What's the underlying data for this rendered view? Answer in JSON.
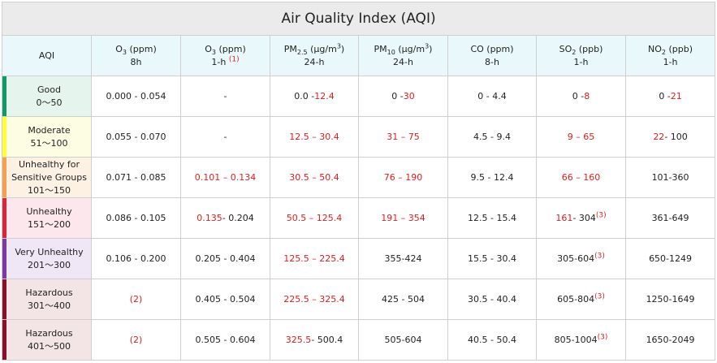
{
  "title": "Air Quality Index (AQI)",
  "header": {
    "aqi": "AQI",
    "o3_8h": {
      "pre": "O",
      "sub": "3",
      "post": " (ppm)",
      "line2": "8h"
    },
    "o3_1h": {
      "pre": "O",
      "sub": "3",
      "post": " (ppm)",
      "line2": "1-h",
      "note": "(1)"
    },
    "pm25": {
      "pre": "PM",
      "sub": "2.5",
      "mid": " (μg/m",
      "sup": "3",
      "post": ")",
      "line2": "24-h"
    },
    "pm10": {
      "pre": "PM",
      "sub": "10",
      "mid": " (μg/m",
      "sup": "3",
      "post": ")",
      "line2": "24-h"
    },
    "co": {
      "line1": "CO (ppm)",
      "line2": "8-h"
    },
    "so2": {
      "pre": "SO",
      "sub": "2",
      "post": " (ppb)",
      "line2": "1-h"
    },
    "no2": {
      "pre": "NO",
      "sub": "2",
      "post": " (ppb)",
      "line2": "1-h"
    }
  },
  "rows": [
    {
      "name": "Good",
      "range": "0～50",
      "bg": "#e6f4ee",
      "bar": "#0f9a6a",
      "o3_8h": "0.000 - 0.054",
      "o3_1h_a": "-",
      "o3_1h_b": "",
      "pm25_a": "0.0 -",
      "pm25_b": "12.4",
      "pm10_a": "0 -",
      "pm10_b": "30",
      "co": "0 - 4.4",
      "so2_a": "0 -",
      "so2_b": "8",
      "so2_note": "",
      "no2_a": "0 -",
      "no2_b": "21"
    },
    {
      "name": "Moderate",
      "range": "51～100",
      "bg": "#fdfde4",
      "bar": "#ffff33",
      "o3_8h": "0.055 - 0.070",
      "o3_1h_a": "-",
      "o3_1h_b": "",
      "pm25_a": "",
      "pm25_b": "12.5 – 30.4",
      "pm10_a": "",
      "pm10_b": "31 – 75",
      "co": "4.5 - 9.4",
      "so2_a": "",
      "so2_b": "9 – 65",
      "so2_note": "",
      "no2_a": "22",
      "no2_b": "- 100"
    },
    {
      "name": "Unhealthy for Sensitive Groups",
      "range": "101～150",
      "bg": "#fdf1e4",
      "bar": "#f5a04a",
      "o3_8h": "0.071 - 0.085",
      "o3_1h_a": "0.101 – 0.134",
      "o3_1h_b": "",
      "pm25_a": "",
      "pm25_b": "30.5 – 50.4",
      "pm10_a": "",
      "pm10_b": "76 – 190",
      "co": "9.5 - 12.4",
      "so2_a": "",
      "so2_b": "66 – 160",
      "so2_note": "",
      "no2_a": "",
      "no2_b": "101-360"
    },
    {
      "name": "Unhealthy",
      "range": "151～200",
      "bg": "#fbe7ec",
      "bar": "#d8263c",
      "o3_8h": "0.086 - 0.105",
      "o3_1h_a": "0.135",
      "o3_1h_b": "- 0.204",
      "pm25_a": "",
      "pm25_b": "50.5 – 125.4",
      "pm10_a": "",
      "pm10_b": "191 – 354",
      "co": "12.5 - 15.4",
      "so2_a": "161",
      "so2_b": "- 304",
      "so2_note": "(3)",
      "no2_a": "",
      "no2_b": "361-649"
    },
    {
      "name": "Very Unhealthy",
      "range": "201～300",
      "bg": "#efe7f5",
      "bar": "#7a3aa2",
      "o3_8h": "0.106 - 0.200",
      "o3_1h_a": "",
      "o3_1h_b": "0.205 - 0.404",
      "pm25_a": "",
      "pm25_b": "125.5 – 225.4",
      "pm10_a": "",
      "pm10_b": "355-424",
      "co": "15.5 - 30.4",
      "so2_a": "",
      "so2_b": "305-604",
      "so2_note": "(3)",
      "no2_a": "",
      "no2_b": "650-1249"
    },
    {
      "name": "Hazardous",
      "range": "301～400",
      "bg": "#f3e4e6",
      "bar": "#8a0f2a",
      "o3_8h": "(2)",
      "o3_1h_a": "",
      "o3_1h_b": "0.405 - 0.504",
      "pm25_a": "",
      "pm25_b": "225.5 – 325.4",
      "pm10_a": "",
      "pm10_b": "425 - 504",
      "co": "30.5 - 40.4",
      "so2_a": "",
      "so2_b": "605-804",
      "so2_note": "(3)",
      "no2_a": "",
      "no2_b": "1250-1649"
    },
    {
      "name": "Hazardous",
      "range": "401～500",
      "bg": "#f3e4e6",
      "bar": "#8a0f2a",
      "o3_8h": "(2)",
      "o3_1h_a": "",
      "o3_1h_b": "0.505 - 0.604",
      "pm25_a": "325.5",
      "pm25_b": "- 500.4",
      "pm10_a": "",
      "pm10_b": "505-604",
      "co": "40.5 - 50.4",
      "so2_a": "",
      "so2_b": "805-1004",
      "so2_note": "(3)",
      "no2_a": "",
      "no2_b": "1650-2049"
    }
  ]
}
